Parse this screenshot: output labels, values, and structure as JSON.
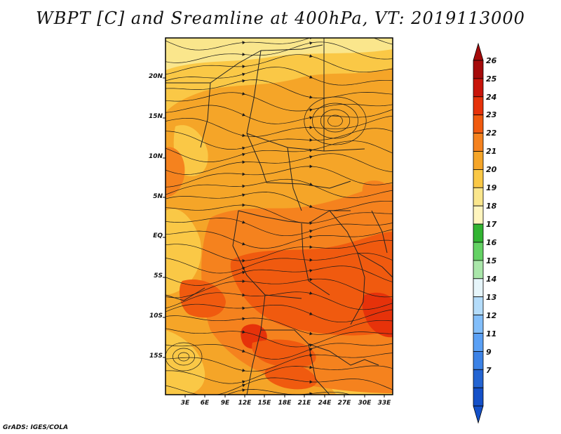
{
  "title": "WBPT [C] and Sreamline at 400hPa, VT: 2019113000",
  "credit": "GrADS: IGES/COLA",
  "map": {
    "variable": "WBPT [C]",
    "overlay": "Sreamline",
    "level": "400hPa",
    "valid_time": "2019113000"
  },
  "lat_labels": [
    "20N",
    "15N",
    "10N",
    "5N",
    "EQ",
    "5S",
    "10S",
    "15S"
  ],
  "lon_labels": [
    "3E",
    "6E",
    "9E",
    "12E",
    "15E",
    "18E",
    "21E",
    "24E",
    "27E",
    "30E",
    "33E"
  ],
  "colorbar": {
    "labels": [
      "26",
      "25",
      "24",
      "23",
      "22",
      "21",
      "20",
      "19",
      "18",
      "17",
      "16",
      "15",
      "14",
      "13",
      "12",
      "11",
      "9",
      "7"
    ],
    "colors": [
      "#a50a0a",
      "#c8140a",
      "#e6320a",
      "#f05a0f",
      "#f5821e",
      "#f5a528",
      "#fac846",
      "#fae68c",
      "#fff5be",
      "#32b432",
      "#64d264",
      "#aae6aa",
      "#e6f5fa",
      "#b4dcfa",
      "#82befa",
      "#5aa0f5",
      "#3c82e6",
      "#2364d2",
      "#1450c8"
    ],
    "top_arrow_color": "#a50a0a",
    "bottom_arrow_color": "#1450c8"
  },
  "field_colors": {
    "c19": "#fae68c",
    "c20": "#fac846",
    "c21": "#f5a528",
    "c22": "#f5821e",
    "c23": "#f05a0f",
    "c24": "#e6320a"
  }
}
